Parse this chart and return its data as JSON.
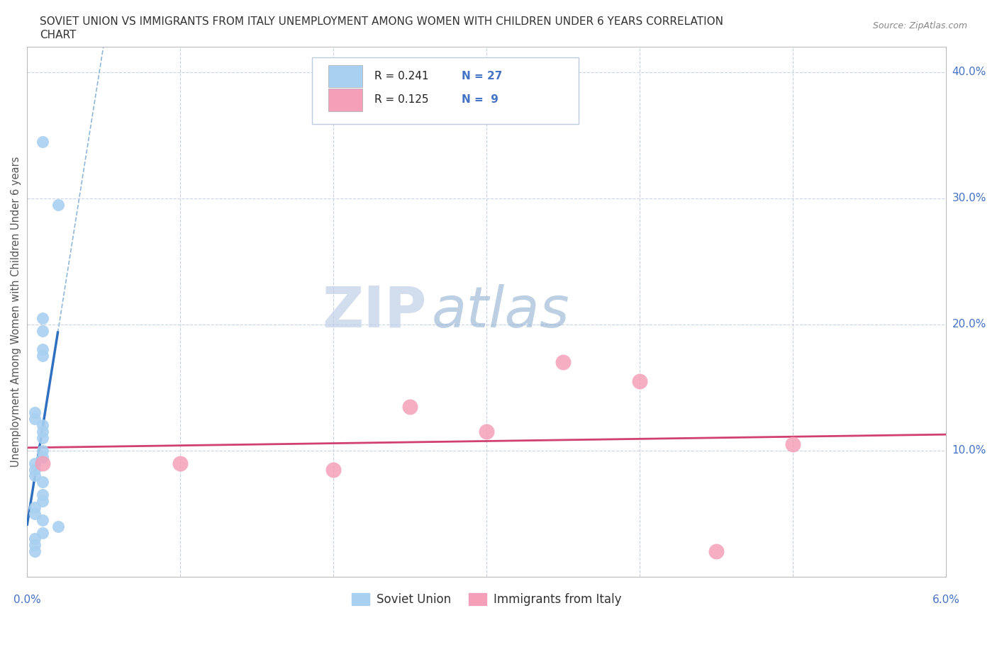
{
  "title_line1": "SOVIET UNION VS IMMIGRANTS FROM ITALY UNEMPLOYMENT AMONG WOMEN WITH CHILDREN UNDER 6 YEARS CORRELATION",
  "title_line2": "CHART",
  "source_text": "Source: ZipAtlas.com",
  "ylabel": "Unemployment Among Women with Children Under 6 years",
  "xlim": [
    0.0,
    0.06
  ],
  "ylim": [
    0.0,
    0.42
  ],
  "soviet_x": [
    0.001,
    0.002,
    0.001,
    0.001,
    0.001,
    0.001,
    0.0005,
    0.0005,
    0.001,
    0.001,
    0.001,
    0.001,
    0.001,
    0.0005,
    0.0005,
    0.0005,
    0.001,
    0.001,
    0.001,
    0.0005,
    0.0005,
    0.001,
    0.002,
    0.001,
    0.0005,
    0.0005,
    0.0005
  ],
  "soviet_y": [
    0.345,
    0.295,
    0.205,
    0.195,
    0.18,
    0.175,
    0.13,
    0.125,
    0.12,
    0.115,
    0.11,
    0.1,
    0.095,
    0.09,
    0.085,
    0.08,
    0.075,
    0.065,
    0.06,
    0.055,
    0.05,
    0.045,
    0.04,
    0.035,
    0.03,
    0.025,
    0.02
  ],
  "italy_x": [
    0.001,
    0.01,
    0.02,
    0.025,
    0.03,
    0.035,
    0.04,
    0.05,
    0.045
  ],
  "italy_y": [
    0.09,
    0.09,
    0.085,
    0.135,
    0.115,
    0.17,
    0.155,
    0.105,
    0.02
  ],
  "soviet_color": "#a8d0f0",
  "italy_color": "#f5a0b8",
  "soviet_line_color": "#3070c0",
  "italy_line_color": "#d04070",
  "soviet_trend_dashed_color": "#90b8d8",
  "R_soviet": 0.241,
  "N_soviet": 27,
  "R_italy": 0.125,
  "N_italy": 9,
  "legend_labels": [
    "Soviet Union",
    "Immigrants from Italy"
  ],
  "watermark_zip": "ZIP",
  "watermark_atlas": "atlas",
  "background_color": "#ffffff",
  "grid_color": "#c8d4e8",
  "axis_color": "#4472c4",
  "title_color": "#333333",
  "label_color": "#555555"
}
